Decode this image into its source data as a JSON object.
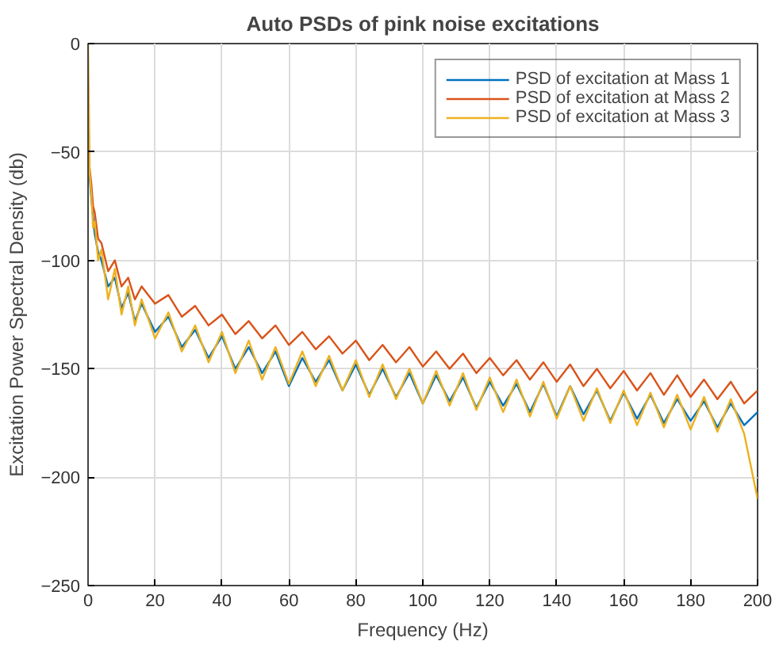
{
  "chart_data": {
    "type": "line",
    "title": "Auto PSDs of pink noise excitations",
    "xlabel": "Frequency (Hz)",
    "ylabel": "Excitation Power Spectral Density (db)",
    "x": [
      0,
      0.5,
      1,
      1.5,
      2,
      3,
      4,
      6,
      8,
      10,
      12,
      14,
      16,
      20,
      24,
      28,
      32,
      36,
      40,
      44,
      48,
      52,
      56,
      60,
      64,
      68,
      72,
      76,
      80,
      84,
      88,
      92,
      96,
      100,
      104,
      108,
      112,
      116,
      120,
      124,
      128,
      132,
      136,
      140,
      144,
      148,
      152,
      156,
      160,
      164,
      168,
      172,
      176,
      180,
      184,
      188,
      192,
      196,
      200
    ],
    "series": [
      {
        "name": "PSD of excitation at Mass 1",
        "color": "#0072bd",
        "values": [
          -48,
          -62,
          -72,
          -80,
          -88,
          -96,
          -100,
          -112,
          -108,
          -122,
          -115,
          -128,
          -120,
          -133,
          -126,
          -140,
          -132,
          -145,
          -135,
          -150,
          -140,
          -152,
          -142,
          -158,
          -145,
          -156,
          -146,
          -160,
          -148,
          -162,
          -150,
          -163,
          -152,
          -166,
          -153,
          -165,
          -154,
          -168,
          -156,
          -167,
          -157,
          -170,
          -157,
          -172,
          -158,
          -171,
          -160,
          -174,
          -161,
          -173,
          -162,
          -175,
          -164,
          -174,
          -165,
          -177,
          -166,
          -176,
          -170
        ]
      },
      {
        "name": "PSD of excitation at Mass 2",
        "color": "#d95319",
        "values": [
          -52,
          -58,
          -65,
          -75,
          -78,
          -90,
          -92,
          -105,
          -100,
          -112,
          -108,
          -118,
          -112,
          -120,
          -116,
          -126,
          -121,
          -130,
          -125,
          -134,
          -128,
          -136,
          -130,
          -139,
          -133,
          -141,
          -135,
          -143,
          -137,
          -146,
          -139,
          -147,
          -140,
          -149,
          -142,
          -150,
          -143,
          -152,
          -145,
          -153,
          -146,
          -155,
          -147,
          -156,
          -148,
          -158,
          -150,
          -159,
          -151,
          -160,
          -152,
          -162,
          -153,
          -163,
          -155,
          -164,
          -156,
          -166,
          -160
        ]
      },
      {
        "name": "PSD of excitation at Mass 3",
        "color": "#edb120",
        "values": [
          0,
          -60,
          -70,
          -85,
          -82,
          -100,
          -95,
          -118,
          -104,
          -125,
          -112,
          -130,
          -118,
          -136,
          -124,
          -142,
          -130,
          -147,
          -133,
          -152,
          -137,
          -155,
          -140,
          -157,
          -142,
          -158,
          -144,
          -160,
          -146,
          -163,
          -148,
          -164,
          -150,
          -166,
          -151,
          -167,
          -152,
          -169,
          -154,
          -170,
          -155,
          -172,
          -156,
          -173,
          -158,
          -174,
          -159,
          -175,
          -160,
          -176,
          -161,
          -177,
          -162,
          -178,
          -163,
          -179,
          -164,
          -180,
          -210
        ]
      }
    ],
    "xlim": [
      0,
      200
    ],
    "xticks": [
      0,
      20,
      40,
      60,
      80,
      100,
      120,
      140,
      160,
      180,
      200
    ],
    "ylim": [
      -250,
      0
    ],
    "yticks": [
      -250,
      -200,
      -150,
      -100,
      -50,
      0
    ],
    "grid": true,
    "legend": "top right"
  }
}
